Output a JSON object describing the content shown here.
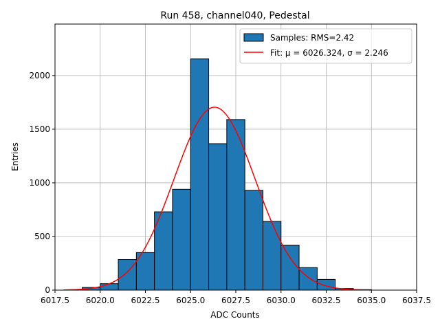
{
  "chart_data": {
    "type": "bar",
    "title": "Run 458, channel040, Pedestal",
    "xlabel": "ADC Counts",
    "ylabel": "Entries",
    "xlim": [
      6017.5,
      6037.5
    ],
    "ylim": [
      0,
      2480
    ],
    "xticks": [
      6017.5,
      6020.0,
      6022.5,
      6025.0,
      6027.5,
      6030.0,
      6032.5,
      6035.0,
      6037.5
    ],
    "xtick_labels": [
      "6017.5",
      "6020.0",
      "6022.5",
      "6025.0",
      "6027.5",
      "6030.0",
      "6032.5",
      "6035.0",
      "6037.5"
    ],
    "yticks": [
      0,
      500,
      1000,
      1500,
      2000
    ],
    "ytick_labels": [
      "0",
      "500",
      "1000",
      "1500",
      "2000"
    ],
    "grid": true,
    "legend_position": "top-right",
    "histogram": {
      "name": "Samples: RMS=2.42",
      "color": "#1f77b4",
      "edgecolor": "#000000",
      "bin_edges": [
        6018.0,
        6019.0,
        6020.0,
        6021.0,
        6022.0,
        6023.0,
        6024.0,
        6025.0,
        6026.0,
        6027.0,
        6028.0,
        6029.0,
        6030.0,
        6031.0,
        6032.0,
        6033.0,
        6034.0,
        6035.0
      ],
      "counts": [
        3,
        25,
        60,
        285,
        350,
        730,
        940,
        2155,
        1365,
        1590,
        930,
        640,
        420,
        210,
        100,
        15,
        5
      ]
    },
    "fit": {
      "name": "Fit: μ = 6026.324, σ = 2.246",
      "color": "#ff0000",
      "mu": 6026.324,
      "sigma": 2.246,
      "amplitude": 1705,
      "x_range": [
        6018.0,
        6035.0
      ]
    }
  }
}
